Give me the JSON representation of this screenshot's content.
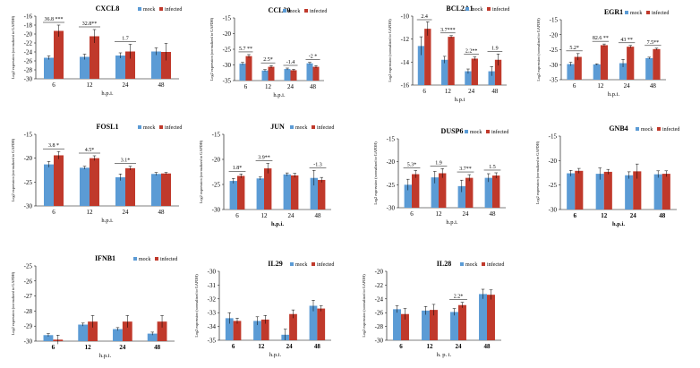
{
  "colors": {
    "mock": "#5b9bd5",
    "infected": "#c0392b",
    "axis": "#000000",
    "error": "#000000"
  },
  "legend": {
    "mock": "mock",
    "infected": "infected"
  },
  "chart_data": [
    {
      "type": "bar",
      "title": "CXCL8",
      "ylabel": "Log2 expression (normalized to GAPDH)",
      "xlabel": "h.p.i.",
      "categories": [
        "6",
        "12",
        "24",
        "48"
      ],
      "ylim": [
        -30,
        -16
      ],
      "ticks": [
        -16,
        -18,
        -20,
        -22,
        -24,
        -26,
        -28,
        -30
      ],
      "series": [
        {
          "name": "mock",
          "values": [
            -25.3,
            -25.1,
            -24.8,
            -23.9
          ],
          "errors": [
            0.4,
            0.6,
            0.6,
            0.8
          ]
        },
        {
          "name": "infected",
          "values": [
            -19.3,
            -20.5,
            -23.9,
            -24.0
          ],
          "errors": [
            1.3,
            1.5,
            1.6,
            1.9
          ]
        }
      ],
      "annotations": [
        "36.8 ***",
        "32.8**",
        "1.7",
        ""
      ]
    },
    {
      "type": "bar",
      "title": "CCL20",
      "ylabel": "Log2 expression (normalized to GAPDH)",
      "xlabel": "h.p.i.",
      "categories": [
        "6",
        "12",
        "24",
        "48"
      ],
      "ylim": [
        -35,
        -15
      ],
      "ticks": [
        -15,
        -20,
        -25,
        -30,
        -35
      ],
      "series": [
        {
          "name": "mock",
          "values": [
            -29.6,
            -31.8,
            -31.3,
            -29.5
          ],
          "errors": [
            0.4,
            0.3,
            0.3,
            0.3
          ]
        },
        {
          "name": "infected",
          "values": [
            -27.2,
            -30.6,
            -31.7,
            -30.6
          ],
          "errors": [
            0.5,
            0.4,
            0.3,
            0.4
          ]
        }
      ],
      "annotations": [
        "5.7 **",
        "2.5*",
        "-1.4",
        "-2 *"
      ]
    },
    {
      "type": "bar",
      "title": "BCL2A1",
      "ylabel": "Log2 expression (normalized to GAPDH)",
      "xlabel": "h.p.i",
      "categories": [
        "6",
        "12",
        "24",
        "48"
      ],
      "ylim": [
        -16,
        -10
      ],
      "ticks": [
        -10,
        -12,
        -14,
        -16
      ],
      "series": [
        {
          "name": "mock",
          "values": [
            -12.6,
            -13.8,
            -14.8,
            -14.8
          ],
          "errors": [
            0.8,
            0.3,
            0.2,
            0.4
          ]
        },
        {
          "name": "infected",
          "values": [
            -11.1,
            -11.8,
            -13.7,
            -13.8
          ],
          "errors": [
            0.6,
            0.1,
            0.15,
            0.5
          ]
        }
      ],
      "annotations": [
        "2.4",
        "3.7***",
        "2.2**",
        "1.9"
      ]
    },
    {
      "type": "bar",
      "title": "EGR1",
      "ylabel": "Log2 expression (normalized to GAPDH)",
      "xlabel": "h.p.i.",
      "categories": [
        "6",
        "12",
        "24",
        "48"
      ],
      "ylim": [
        -35,
        -15
      ],
      "ticks": [
        -15,
        -20,
        -25,
        -30,
        -35
      ],
      "series": [
        {
          "name": "mock",
          "values": [
            -29.8,
            -29.9,
            -29.5,
            -27.8
          ],
          "errors": [
            0.6,
            0.2,
            1.3,
            0.3
          ]
        },
        {
          "name": "infected",
          "values": [
            -27.4,
            -23.5,
            -24.0,
            -24.8
          ],
          "errors": [
            1.1,
            0.4,
            0.4,
            0.3
          ]
        }
      ],
      "annotations": [
        "5.2*",
        "82.6 **",
        "43 **",
        "7.5**"
      ]
    },
    {
      "type": "bar",
      "title": "FOSL1",
      "ylabel": "Log2 expression (normalized to GAPDH)",
      "xlabel": "h.p.i.",
      "categories": [
        "6",
        "12",
        "24",
        "48"
      ],
      "ylim": [
        -30,
        -15
      ],
      "ticks": [
        -15,
        -20,
        -25,
        -30
      ],
      "series": [
        {
          "name": "mock",
          "values": [
            -21.3,
            -22.0,
            -24.0,
            -23.3
          ],
          "errors": [
            0.6,
            0.3,
            0.7,
            0.3
          ]
        },
        {
          "name": "infected",
          "values": [
            -19.4,
            -20.0,
            -22.1,
            -23.2
          ],
          "errors": [
            0.8,
            0.5,
            0.4,
            0.2
          ]
        }
      ],
      "annotations": [
        "3.8 *",
        "4.5*",
        "3.1*",
        ""
      ]
    },
    {
      "type": "bar",
      "title": "JUN",
      "ylabel": "Log2 expression (normalized to GAPDH)",
      "xlabel": "h.p.i.",
      "categories": [
        "6",
        "12",
        "24",
        "48"
      ],
      "ylim": [
        -30,
        -15
      ],
      "ticks": [
        -15,
        -20,
        -25,
        -30
      ],
      "series": [
        {
          "name": "mock",
          "values": [
            -24.3,
            -23.8,
            -23.0,
            -23.7
          ],
          "errors": [
            0.5,
            0.3,
            0.3,
            1.5
          ]
        },
        {
          "name": "infected",
          "values": [
            -23.3,
            -21.8,
            -23.2,
            -24.1
          ],
          "errors": [
            0.4,
            1.0,
            0.4,
            0.5
          ]
        }
      ],
      "annotations": [
        "1.8*",
        "3.9**",
        "",
        "-1.3"
      ]
    },
    {
      "type": "bar",
      "title": "DUSP6",
      "ylabel": "Log2 expression (normalized to GAPDH)",
      "xlabel": "h.p.i.",
      "categories": [
        "6",
        "12",
        "24",
        "48"
      ],
      "ylim": [
        -30,
        -15
      ],
      "ticks": [
        -15,
        -20,
        -25,
        -30
      ],
      "series": [
        {
          "name": "mock",
          "values": [
            -25.0,
            -23.4,
            -25.3,
            -23.5
          ],
          "errors": [
            1.2,
            1.3,
            1.3,
            0.9
          ]
        },
        {
          "name": "infected",
          "values": [
            -22.7,
            -22.5,
            -23.5,
            -23.0
          ],
          "errors": [
            0.8,
            1.0,
            0.7,
            0.6
          ]
        }
      ],
      "annotations": [
        "5.3*",
        "1.9",
        "3.7**",
        "1.5"
      ]
    },
    {
      "type": "bar",
      "title": "GNB4",
      "ylabel": "Log2 expression (normalized to GAPDH)",
      "xlabel": "h.p.i.",
      "categories": [
        "6",
        "12",
        "24",
        "48"
      ],
      "ylim": [
        -30,
        -15
      ],
      "ticks": [
        -15,
        -20,
        -25,
        -30
      ],
      "series": [
        {
          "name": "mock",
          "values": [
            -22.6,
            -22.7,
            -23.0,
            -22.8
          ],
          "errors": [
            0.6,
            1.2,
            0.7,
            0.7
          ]
        },
        {
          "name": "infected",
          "values": [
            -22.1,
            -22.3,
            -22.2,
            -22.7
          ],
          "errors": [
            0.5,
            0.5,
            1.5,
            0.6
          ]
        }
      ],
      "annotations": [
        "",
        "",
        "",
        ""
      ]
    },
    {
      "type": "bar",
      "title": "IFNB1",
      "ylabel": "Log2 expression (normalized to GAPDH)",
      "xlabel": "h.p.i.",
      "categories": [
        "6",
        "12",
        "24",
        "48"
      ],
      "ylim": [
        -30,
        -25
      ],
      "ticks": [
        -25,
        -26,
        -27,
        -28,
        -29,
        -30
      ],
      "series": [
        {
          "name": "mock",
          "values": [
            -29.6,
            -28.9,
            -29.2,
            -29.5
          ],
          "errors": [
            0.1,
            0.1,
            0.1,
            0.1
          ]
        },
        {
          "name": "infected",
          "values": [
            -29.9,
            -28.7,
            -28.7,
            -28.7
          ],
          "errors": [
            0.3,
            0.4,
            0.4,
            0.4
          ]
        }
      ],
      "annotations": [
        "",
        "",
        "",
        ""
      ]
    },
    {
      "type": "bar",
      "title": "IL29",
      "ylabel": "Log2 expression (normalized to GAPDH)",
      "xlabel": "h.p.i.",
      "categories": [
        "6",
        "12",
        "24",
        "48"
      ],
      "ylim": [
        -35,
        -30
      ],
      "ticks": [
        -30,
        -31,
        -32,
        -33,
        -34,
        -35
      ],
      "series": [
        {
          "name": "mock",
          "values": [
            -33.4,
            -33.6,
            -34.6,
            -32.5
          ],
          "errors": [
            0.4,
            0.3,
            0.4,
            0.4
          ]
        },
        {
          "name": "infected",
          "values": [
            -33.6,
            -33.5,
            -33.1,
            -32.7
          ],
          "errors": [
            0.2,
            0.3,
            0.3,
            0.2
          ]
        }
      ],
      "annotations": [
        "",
        "",
        "",
        ""
      ]
    },
    {
      "type": "bar",
      "title": "IL28",
      "ylabel": "Log2 expression (normalized to GAPDH)",
      "xlabel": "h. p. i.",
      "categories": [
        "6",
        "12",
        "24",
        "48"
      ],
      "ylim": [
        -30,
        -20
      ],
      "ticks": [
        -20,
        -22,
        -24,
        -26,
        -28,
        -30
      ],
      "series": [
        {
          "name": "mock",
          "values": [
            -25.5,
            -25.7,
            -25.9,
            -23.3
          ],
          "errors": [
            0.5,
            0.6,
            0.5,
            0.7
          ]
        },
        {
          "name": "infected",
          "values": [
            -26.2,
            -25.6,
            -24.9,
            -23.4
          ],
          "errors": [
            0.8,
            0.8,
            0.4,
            0.7
          ]
        }
      ],
      "annotations": [
        "",
        "",
        "2.2*",
        ""
      ]
    }
  ]
}
